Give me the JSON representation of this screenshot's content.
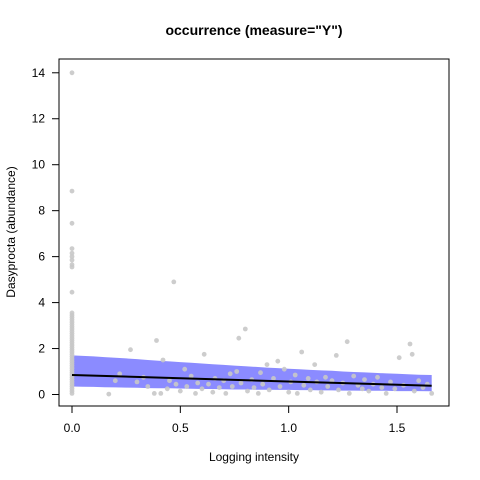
{
  "chart_data": {
    "type": "scatter",
    "title": "occurrence (measure=\"Y\")",
    "xlabel": "Logging intensity",
    "ylabel": "Dasyprocta (abundance)",
    "xlim": [
      -0.06,
      1.74
    ],
    "ylim": [
      -0.5,
      14.6
    ],
    "xticks": [
      0.0,
      0.5,
      1.0,
      1.5
    ],
    "xtick_labels": [
      "0.0",
      "0.5",
      "1.0",
      "1.5"
    ],
    "yticks": [
      0,
      2,
      4,
      6,
      8,
      10,
      12,
      14
    ],
    "ytick_labels": [
      "0",
      "2",
      "4",
      "6",
      "8",
      "10",
      "12",
      "14"
    ],
    "grid": false,
    "colors": {
      "points": "#c8c8c8",
      "band": "#7777ff",
      "fit": "#000000",
      "axis": "#000000"
    },
    "fit_line": {
      "x": [
        0.0,
        1.66
      ],
      "y": [
        0.85,
        0.38
      ]
    },
    "confidence_band": {
      "x": [
        0.0,
        0.05,
        0.1,
        0.15,
        0.2,
        0.25,
        0.3,
        0.35,
        0.4,
        0.45,
        0.5,
        0.55,
        0.6,
        0.65,
        0.7,
        0.75,
        0.8,
        0.85,
        0.9,
        0.95,
        1.0,
        1.05,
        1.1,
        1.15,
        1.2,
        1.25,
        1.3,
        1.35,
        1.4,
        1.45,
        1.5,
        1.55,
        1.6,
        1.66
      ],
      "upper": [
        1.7,
        1.68,
        1.66,
        1.63,
        1.6,
        1.57,
        1.54,
        1.5,
        1.47,
        1.44,
        1.41,
        1.38,
        1.35,
        1.32,
        1.29,
        1.26,
        1.23,
        1.2,
        1.17,
        1.15,
        1.12,
        1.1,
        1.07,
        1.05,
        1.03,
        1.0,
        0.98,
        0.96,
        0.94,
        0.92,
        0.9,
        0.88,
        0.86,
        0.85
      ],
      "lower": [
        0.35,
        0.34,
        0.33,
        0.32,
        0.31,
        0.3,
        0.29,
        0.28,
        0.27,
        0.27,
        0.26,
        0.25,
        0.24,
        0.24,
        0.23,
        0.22,
        0.22,
        0.21,
        0.21,
        0.2,
        0.2,
        0.19,
        0.19,
        0.18,
        0.18,
        0.17,
        0.17,
        0.16,
        0.16,
        0.16,
        0.15,
        0.15,
        0.15,
        0.14
      ]
    },
    "points": [
      [
        0,
        14.0
      ],
      [
        0,
        8.85
      ],
      [
        0,
        7.45
      ],
      [
        0,
        6.35
      ],
      [
        0,
        6.15
      ],
      [
        0,
        6.0
      ],
      [
        0,
        5.85
      ],
      [
        0,
        5.65
      ],
      [
        0,
        5.55
      ],
      [
        0,
        4.45
      ],
      [
        0,
        3.55
      ],
      [
        0,
        3.45
      ],
      [
        0,
        3.35
      ],
      [
        0,
        3.25
      ],
      [
        0,
        3.15
      ],
      [
        0,
        3.05
      ],
      [
        0,
        2.95
      ],
      [
        0,
        2.85
      ],
      [
        0,
        2.75
      ],
      [
        0,
        2.65
      ],
      [
        0,
        2.55
      ],
      [
        0,
        2.45
      ],
      [
        0,
        2.35
      ],
      [
        0,
        2.25
      ],
      [
        0,
        2.15
      ],
      [
        0,
        2.05
      ],
      [
        0,
        1.95
      ],
      [
        0,
        1.85
      ],
      [
        0,
        1.75
      ],
      [
        0,
        1.65
      ],
      [
        0,
        1.55
      ],
      [
        0,
        1.45
      ],
      [
        0,
        1.35
      ],
      [
        0,
        1.25
      ],
      [
        0,
        1.15
      ],
      [
        0,
        1.05
      ],
      [
        0,
        0.95
      ],
      [
        0,
        0.85
      ],
      [
        0,
        0.75
      ],
      [
        0,
        0.65
      ],
      [
        0,
        0.55
      ],
      [
        0,
        0.45
      ],
      [
        0,
        0.35
      ],
      [
        0,
        0.25
      ],
      [
        0,
        0.15
      ],
      [
        0,
        0.05
      ],
      [
        0.17,
        0.02
      ],
      [
        0.2,
        0.6
      ],
      [
        0.22,
        0.9
      ],
      [
        0.27,
        1.95
      ],
      [
        0.3,
        0.55
      ],
      [
        0.33,
        0.75
      ],
      [
        0.35,
        0.35
      ],
      [
        0.38,
        0.05
      ],
      [
        0.39,
        2.35
      ],
      [
        0.41,
        0.05
      ],
      [
        0.42,
        1.5
      ],
      [
        0.44,
        0.25
      ],
      [
        0.45,
        0.6
      ],
      [
        0.47,
        4.9
      ],
      [
        0.48,
        0.45
      ],
      [
        0.5,
        0.15
      ],
      [
        0.52,
        1.1
      ],
      [
        0.53,
        0.35
      ],
      [
        0.55,
        0.8
      ],
      [
        0.57,
        0.05
      ],
      [
        0.58,
        0.5
      ],
      [
        0.6,
        0.25
      ],
      [
        0.61,
        1.75
      ],
      [
        0.63,
        0.45
      ],
      [
        0.65,
        0.1
      ],
      [
        0.66,
        0.7
      ],
      [
        0.68,
        0.3
      ],
      [
        0.7,
        0.6
      ],
      [
        0.71,
        0.05
      ],
      [
        0.73,
        0.9
      ],
      [
        0.74,
        0.35
      ],
      [
        0.76,
        1.0
      ],
      [
        0.77,
        2.45
      ],
      [
        0.78,
        0.5
      ],
      [
        0.8,
        2.85
      ],
      [
        0.81,
        0.15
      ],
      [
        0.83,
        0.65
      ],
      [
        0.84,
        0.3
      ],
      [
        0.86,
        0.05
      ],
      [
        0.87,
        0.95
      ],
      [
        0.88,
        0.45
      ],
      [
        0.9,
        1.3
      ],
      [
        0.91,
        0.2
      ],
      [
        0.93,
        0.7
      ],
      [
        0.95,
        1.45
      ],
      [
        0.96,
        0.35
      ],
      [
        0.98,
        1.1
      ],
      [
        1.0,
        0.1
      ],
      [
        1.01,
        0.55
      ],
      [
        1.03,
        0.85
      ],
      [
        1.04,
        0.05
      ],
      [
        1.06,
        1.85
      ],
      [
        1.07,
        0.4
      ],
      [
        1.09,
        0.7
      ],
      [
        1.1,
        0.2
      ],
      [
        1.12,
        1.3
      ],
      [
        1.13,
        0.55
      ],
      [
        1.15,
        0.1
      ],
      [
        1.17,
        0.75
      ],
      [
        1.18,
        0.35
      ],
      [
        1.2,
        0.6
      ],
      [
        1.22,
        1.7
      ],
      [
        1.23,
        0.2
      ],
      [
        1.25,
        0.5
      ],
      [
        1.27,
        2.3
      ],
      [
        1.28,
        0.05
      ],
      [
        1.3,
        0.8
      ],
      [
        1.32,
        0.4
      ],
      [
        1.34,
        0.25
      ],
      [
        1.35,
        0.65
      ],
      [
        1.37,
        0.15
      ],
      [
        1.39,
        0.45
      ],
      [
        1.41,
        0.75
      ],
      [
        1.43,
        0.3
      ],
      [
        1.45,
        0.05
      ],
      [
        1.47,
        0.55
      ],
      [
        1.49,
        0.25
      ],
      [
        1.51,
        1.6
      ],
      [
        1.53,
        0.4
      ],
      [
        1.56,
        2.2
      ],
      [
        1.57,
        1.75
      ],
      [
        1.58,
        0.15
      ],
      [
        1.6,
        0.6
      ],
      [
        1.62,
        0.3
      ],
      [
        1.64,
        0.45
      ],
      [
        1.66,
        0.05
      ]
    ]
  }
}
